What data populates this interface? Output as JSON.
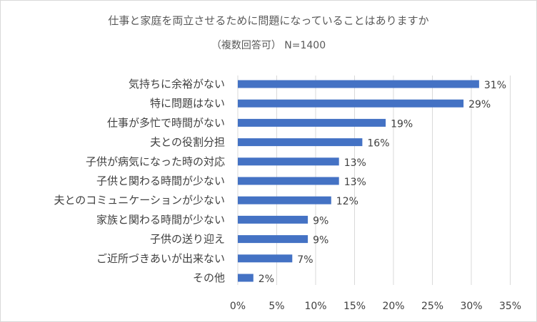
{
  "chart_data": {
    "type": "bar",
    "orientation": "horizontal",
    "title": "仕事と家庭を両立させるために問題になっていることはありますか",
    "subtitle": "（複数回答可） N=1400",
    "categories": [
      "気持ちに余裕がない",
      "特に問題はない",
      "仕事が多忙で時間がない",
      "夫との役割分担",
      "子供が病気になった時の対応",
      "子供と関わる時間が少ない",
      "夫とのコミュニケーションが少ない",
      "家族と関わる時間が少ない",
      "子供の送り迎え",
      "ご近所づきあいが出来ない",
      "その他"
    ],
    "values": [
      31,
      29,
      19,
      16,
      13,
      13,
      12,
      9,
      9,
      7,
      2
    ],
    "data_labels": [
      "31%",
      "29%",
      "19%",
      "16%",
      "13%",
      "13%",
      "12%",
      "9%",
      "9%",
      "7%",
      "2%"
    ],
    "xlim": [
      0,
      35
    ],
    "x_ticks": [
      0,
      5,
      10,
      15,
      20,
      25,
      30,
      35
    ],
    "x_tick_labels": [
      "0%",
      "5%",
      "10%",
      "15%",
      "20%",
      "25%",
      "30%",
      "35%"
    ],
    "grid": true,
    "legend": "none",
    "bar_color": "#4472c4",
    "grid_color": "#d9d9d9",
    "xlabel": "",
    "ylabel": ""
  }
}
